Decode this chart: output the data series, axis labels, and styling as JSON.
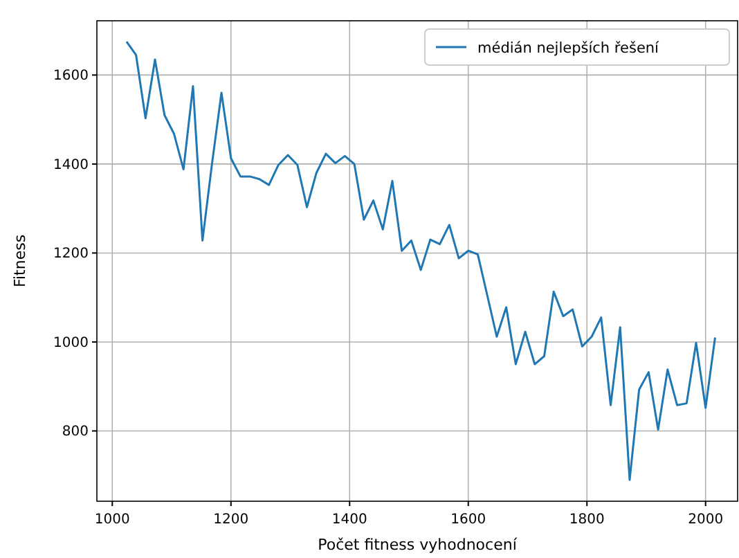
{
  "chart_data": {
    "type": "line",
    "xlabel": "Počet fitness vyhodnocení",
    "ylabel": "Fitness",
    "x": [
      1024,
      1040,
      1056,
      1072,
      1088,
      1104,
      1120,
      1136,
      1152,
      1168,
      1184,
      1200,
      1216,
      1232,
      1248,
      1264,
      1280,
      1296,
      1312,
      1328,
      1344,
      1360,
      1376,
      1392,
      1408,
      1424,
      1440,
      1456,
      1472,
      1488,
      1504,
      1520,
      1536,
      1552,
      1568,
      1584,
      1600,
      1616,
      1632,
      1648,
      1664,
      1680,
      1696,
      1712,
      1728,
      1744,
      1760,
      1776,
      1792,
      1808,
      1824,
      1840,
      1856,
      1872,
      1888,
      1904,
      1920,
      1936,
      1952,
      1968,
      1984,
      2000,
      2016
    ],
    "series": [
      {
        "name": "médián nejlepších řešení",
        "color": "#1f77b4",
        "values": [
          1675,
          1645,
          1503,
          1635,
          1510,
          1468,
          1388,
          1575,
          1228,
          1400,
          1560,
          1413,
          1372,
          1372,
          1366,
          1353,
          1398,
          1420,
          1398,
          1303,
          1380,
          1423,
          1402,
          1418,
          1400,
          1275,
          1318,
          1253,
          1362,
          1205,
          1228,
          1162,
          1230,
          1220,
          1263,
          1188,
          1205,
          1197,
          1105,
          1012,
          1078,
          950,
          1023,
          950,
          968,
          1113,
          1058,
          1073,
          990,
          1012,
          1055,
          858,
          1033,
          690,
          893,
          932,
          803,
          938,
          858,
          862,
          998,
          852,
          1010
        ]
      }
    ],
    "xlim": [
      974,
      2054
    ],
    "ylim": [
      642,
      1722
    ],
    "xticks": [
      1000,
      1200,
      1400,
      1600,
      1800,
      2000
    ],
    "yticks": [
      800,
      1000,
      1200,
      1400,
      1600
    ],
    "grid": true,
    "legend": "top right",
    "line_style": "solid",
    "marker": "none"
  }
}
